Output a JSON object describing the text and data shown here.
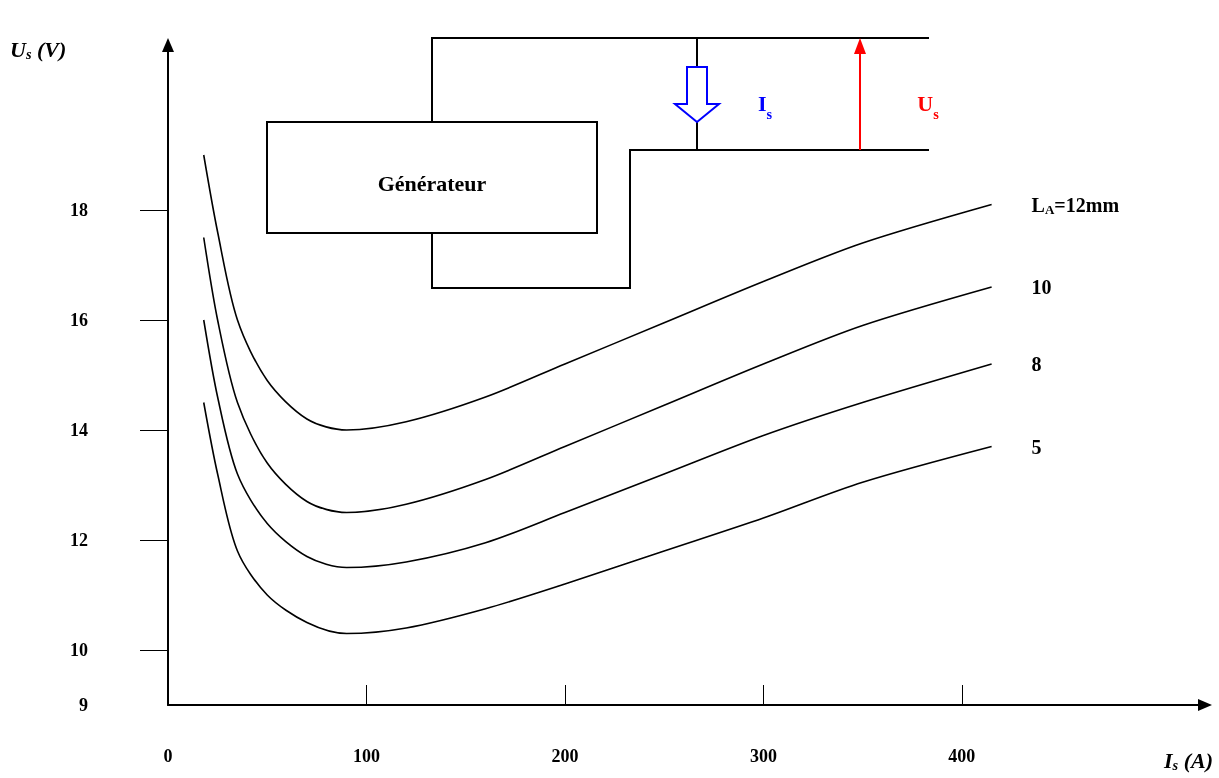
{
  "chart_data": {
    "type": "line",
    "xlabel": "I$_{s}$ (A)",
    "ylabel": "U$_{s}$ (V)",
    "x": [
      18,
      25,
      35,
      50,
      70,
      90,
      120,
      160,
      200,
      250,
      300,
      350,
      415
    ],
    "series": [
      {
        "name": "L$_{A}$=12mm",
        "color": "#000000",
        "values": [
          19.0,
          17.6,
          16.0,
          14.9,
          14.2,
          14.0,
          14.15,
          14.6,
          15.2,
          15.95,
          16.7,
          17.4,
          18.1
        ]
      },
      {
        "name": "10",
        "color": "#000000",
        "values": [
          17.5,
          16.0,
          14.5,
          13.4,
          12.7,
          12.5,
          12.65,
          13.1,
          13.7,
          14.45,
          15.2,
          15.9,
          16.6
        ]
      },
      {
        "name": "8",
        "color": "#000000",
        "values": [
          16.0,
          14.6,
          13.2,
          12.3,
          11.7,
          11.5,
          11.6,
          11.95,
          12.5,
          13.2,
          13.9,
          14.5,
          15.2
        ]
      },
      {
        "name": "5",
        "color": "#000000",
        "values": [
          14.5,
          13.2,
          11.8,
          11.0,
          10.5,
          10.3,
          10.4,
          10.75,
          11.2,
          11.8,
          12.4,
          13.05,
          13.7
        ]
      }
    ],
    "xlim": [
      0,
      520
    ],
    "xticks": [
      0,
      100,
      200,
      300,
      400
    ],
    "ylim": [
      9,
      21
    ],
    "yticks": [
      9,
      10,
      12,
      14,
      16,
      18
    ],
    "annotations": [
      "Générateur",
      "I$_{s}$",
      "U$_{s}$"
    ],
    "grid": false,
    "legend": false
  }
}
